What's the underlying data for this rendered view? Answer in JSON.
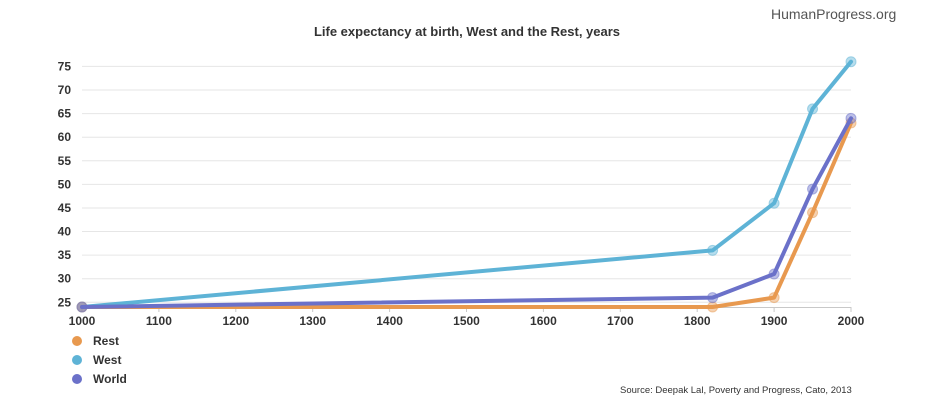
{
  "header": {
    "brand": "HumanProgress.org"
  },
  "footer": {
    "source": "Source: Deepak Lal, Poverty and Progress, Cato, 2013"
  },
  "chart_data": {
    "type": "line",
    "title": "Life expectancy at birth, West and the Rest, years",
    "xlabel": "",
    "ylabel": "",
    "xlim": [
      1000,
      2000
    ],
    "ylim": [
      24,
      77
    ],
    "x_ticks": [
      1000,
      1100,
      1200,
      1300,
      1400,
      1500,
      1600,
      1700,
      1800,
      1900,
      2000
    ],
    "y_ticks": [
      25,
      30,
      35,
      40,
      45,
      50,
      55,
      60,
      65,
      70,
      75
    ],
    "grid": true,
    "legend_position": "bottom-left",
    "series": [
      {
        "name": "Rest",
        "color": "#e8994f",
        "points": [
          [
            1000,
            24
          ],
          [
            1820,
            24
          ],
          [
            1900,
            26
          ],
          [
            1950,
            44
          ],
          [
            2000,
            63
          ]
        ]
      },
      {
        "name": "West",
        "color": "#5eb3d6",
        "points": [
          [
            1000,
            24
          ],
          [
            1820,
            36
          ],
          [
            1900,
            46
          ],
          [
            1950,
            66
          ],
          [
            2000,
            76
          ]
        ]
      },
      {
        "name": "World",
        "color": "#6b71c9",
        "points": [
          [
            1000,
            24
          ],
          [
            1820,
            26
          ],
          [
            1900,
            31
          ],
          [
            1950,
            49
          ],
          [
            2000,
            64
          ]
        ]
      }
    ]
  }
}
